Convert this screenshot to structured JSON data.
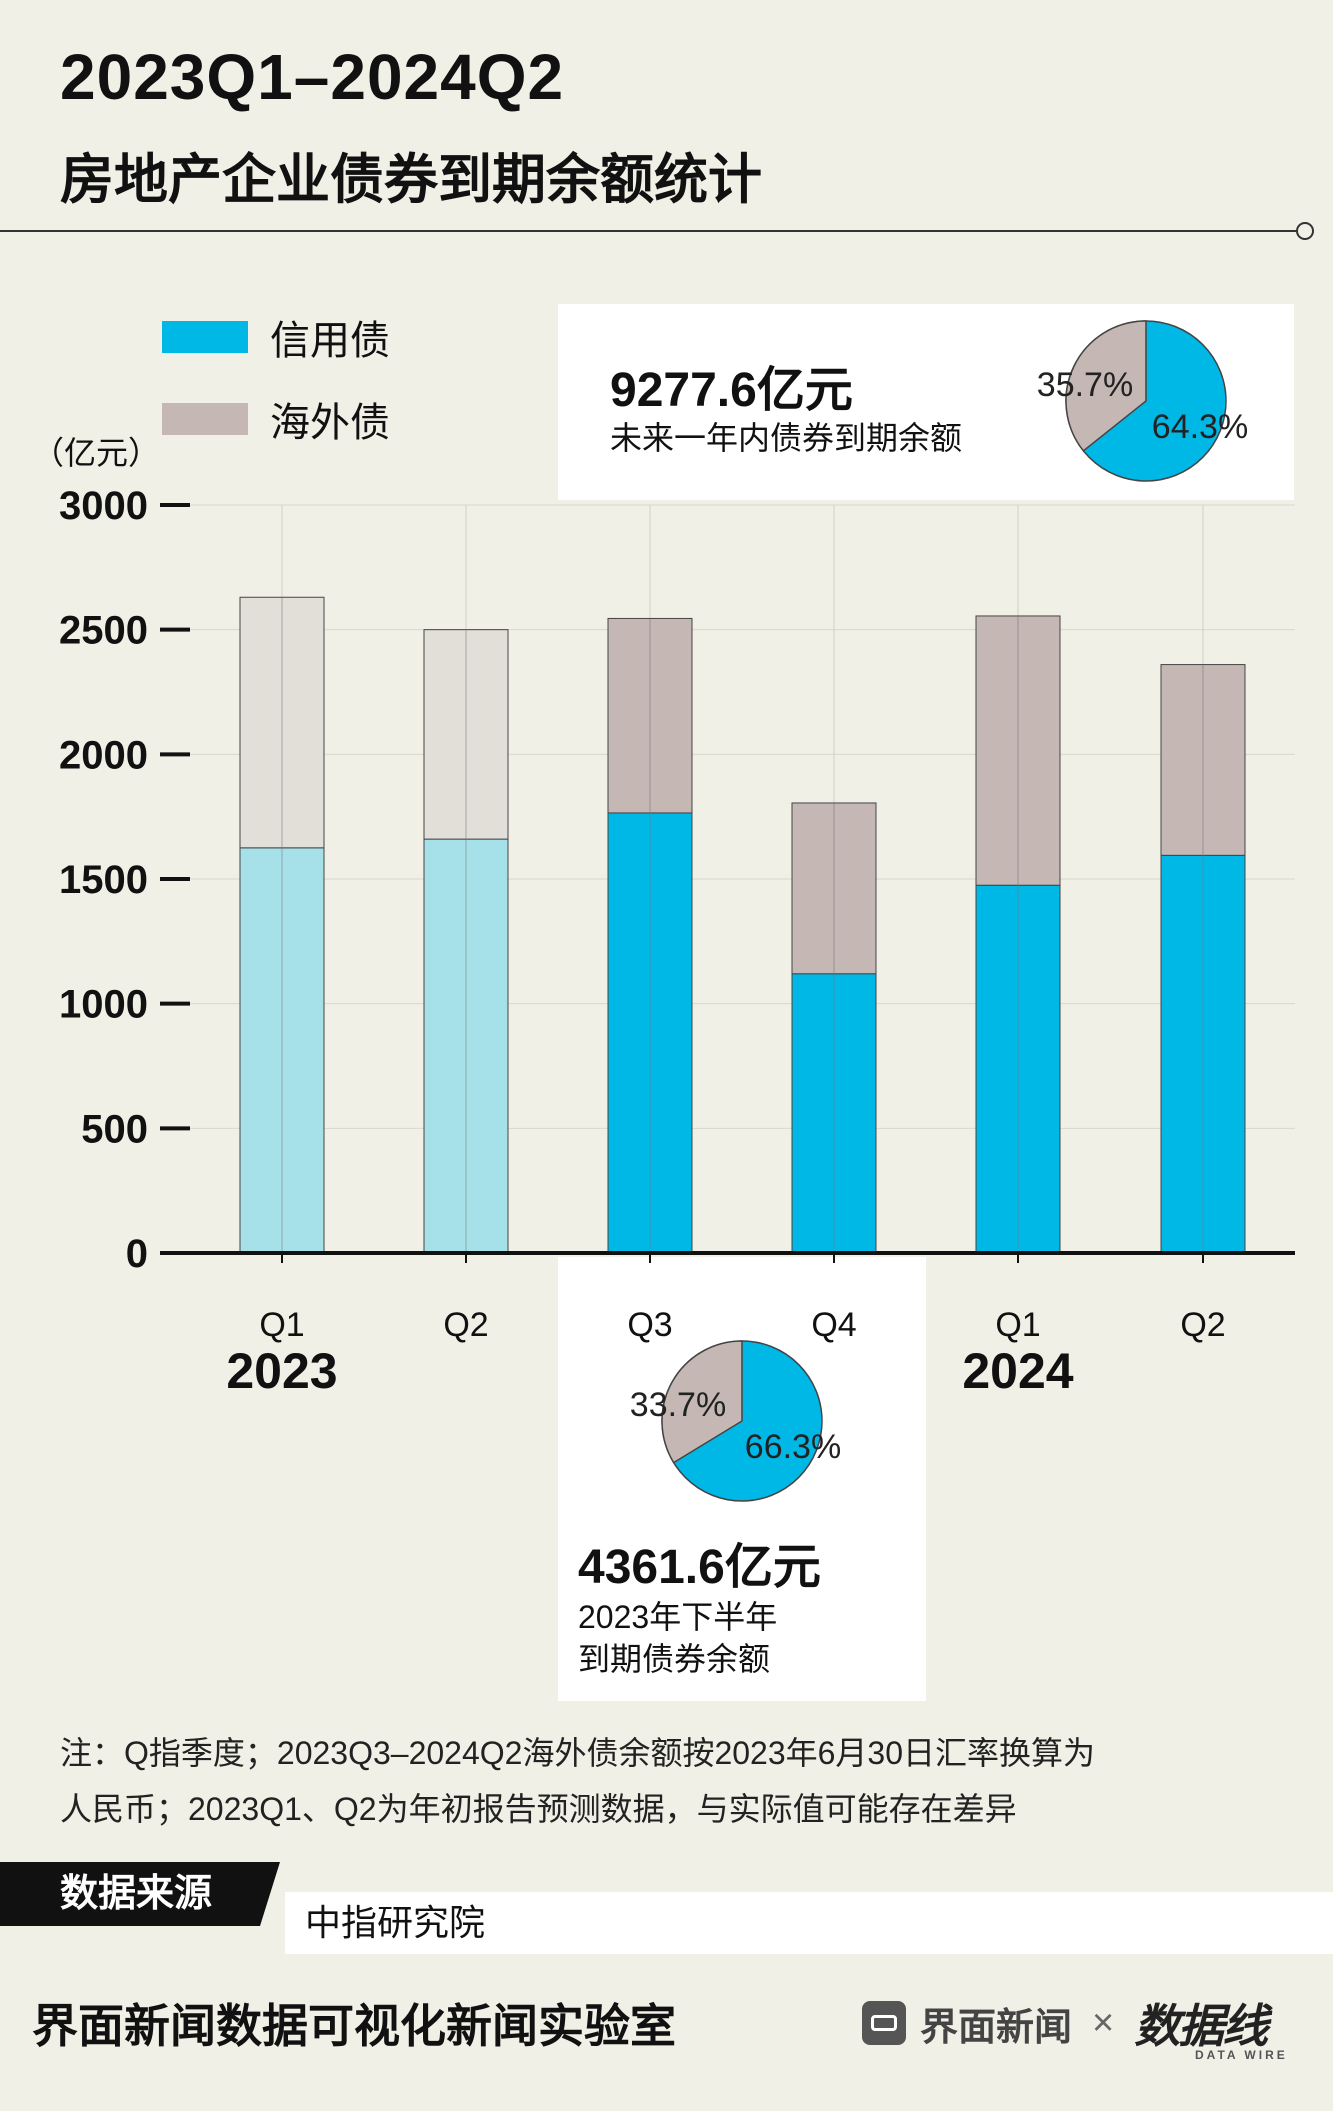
{
  "title_line1": "2023Q1–2024Q2",
  "title_line2": "房地产企业债券到期余额统计",
  "legend": {
    "credit": "信用债",
    "overseas": "海外债"
  },
  "unit": "（亿元）",
  "colors": {
    "credit": "#00b8e6",
    "credit_light": "#a6e1ea",
    "overseas": "#c4b7b4",
    "overseas_light": "#e2dfd8"
  },
  "box_year": {
    "amount": "9277.6亿元",
    "desc": "未来一年内债券到期余额",
    "pie": {
      "overseas_label": "35.7%",
      "credit_label": "64.3%",
      "overseas_share": 35.7
    }
  },
  "box_h2": {
    "amount": "4361.6亿元",
    "desc1": "2023年下半年",
    "desc2": "到期债券余额",
    "pie": {
      "overseas_label": "33.7%",
      "credit_label": "66.3%",
      "overseas_share": 33.7
    }
  },
  "year_labels": [
    "2023",
    "2024"
  ],
  "chart_data": {
    "type": "bar",
    "stacked": true,
    "categories": [
      "Q1",
      "Q2",
      "Q3",
      "Q4",
      "Q1",
      "Q2"
    ],
    "series": [
      {
        "name": "信用债",
        "values": [
          1625,
          1660,
          1765,
          1120,
          1475,
          1595
        ]
      },
      {
        "name": "海外债",
        "values": [
          1005,
          840,
          780,
          685,
          1080,
          765
        ]
      }
    ],
    "forecast_flags": [
      true,
      true,
      false,
      false,
      false,
      false
    ],
    "yticks": [
      "0",
      "500",
      "1000",
      "1500",
      "2000",
      "2500",
      "3000"
    ],
    "ylim": [
      0,
      3000
    ],
    "ylabel": "（亿元）"
  },
  "note_line1": "注：Q指季度；2023Q3–2024Q2海外债余额按2023年6月30日汇率换算为",
  "note_line2": "人民币；2023Q1、Q2为年初报告预测数据，与实际值可能存在差异",
  "source_label": "数据来源",
  "source_value": "中指研究院",
  "footer": "界面新闻数据可视化新闻实验室",
  "brand": {
    "name": "界面新闻",
    "times": "×",
    "partner": "数据线",
    "partner_sub": "DATA WIRE"
  }
}
